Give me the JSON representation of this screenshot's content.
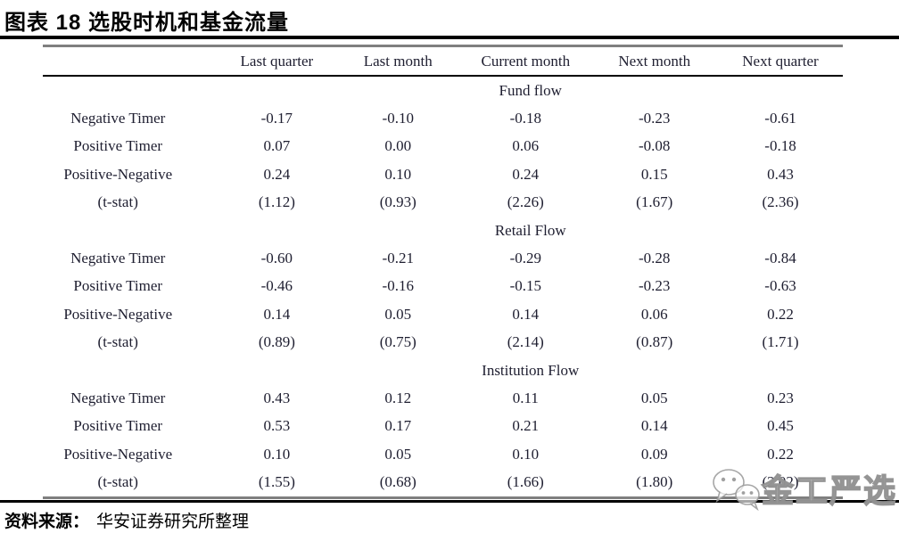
{
  "page": {
    "title": "图表 18 选股时机和基金流量",
    "source": {
      "label": "资料来源：",
      "text": "华安证券研究所整理"
    },
    "watermark": {
      "icon": "wechat-icon",
      "text": "金工严选"
    }
  },
  "chart_data": {
    "type": "table",
    "title": "图表 18 选股时机和基金流量",
    "columns": [
      "",
      "Last quarter",
      "Last month",
      "Current month",
      "Next month",
      "Next quarter"
    ],
    "sections": [
      {
        "name": "Fund flow",
        "rows": [
          {
            "label": "Negative Timer",
            "values": [
              "-0.17",
              "-0.10",
              "-0.18",
              "-0.23",
              "-0.61"
            ]
          },
          {
            "label": "Positive Timer",
            "values": [
              "0.07",
              "0.00",
              "0.06",
              "-0.08",
              "-0.18"
            ]
          },
          {
            "label": "Positive-Negative",
            "values": [
              "0.24",
              "0.10",
              "0.24",
              "0.15",
              "0.43"
            ]
          },
          {
            "label": "(t-stat)",
            "values": [
              "(1.12)",
              "(0.93)",
              "(2.26)",
              "(1.67)",
              "(2.36)"
            ]
          }
        ]
      },
      {
        "name": "Retail Flow",
        "rows": [
          {
            "label": "Negative Timer",
            "values": [
              "-0.60",
              "-0.21",
              "-0.29",
              "-0.28",
              "-0.84"
            ]
          },
          {
            "label": "Positive Timer",
            "values": [
              "-0.46",
              "-0.16",
              "-0.15",
              "-0.23",
              "-0.63"
            ]
          },
          {
            "label": "Positive-Negative",
            "values": [
              "0.14",
              "0.05",
              "0.14",
              "0.06",
              "0.22"
            ]
          },
          {
            "label": "(t-stat)",
            "values": [
              "(0.89)",
              "(0.75)",
              "(2.14)",
              "(0.87)",
              "(1.71)"
            ]
          }
        ]
      },
      {
        "name": "Institution Flow",
        "rows": [
          {
            "label": "Negative Timer",
            "values": [
              "0.43",
              "0.12",
              "0.11",
              "0.05",
              "0.23"
            ]
          },
          {
            "label": "Positive Timer",
            "values": [
              "0.53",
              "0.17",
              "0.21",
              "0.14",
              "0.45"
            ]
          },
          {
            "label": "Positive-Negative",
            "values": [
              "0.10",
              "0.05",
              "0.10",
              "0.09",
              "0.22"
            ]
          },
          {
            "label": "(t-stat)",
            "values": [
              "(1.55)",
              "(0.68)",
              "(1.66)",
              "(1.80)",
              "(2.02)"
            ]
          }
        ]
      }
    ],
    "colors": {
      "text": "#1e1e30",
      "rule_black": "#000000",
      "rule_gray": "#7f7f7f"
    }
  }
}
